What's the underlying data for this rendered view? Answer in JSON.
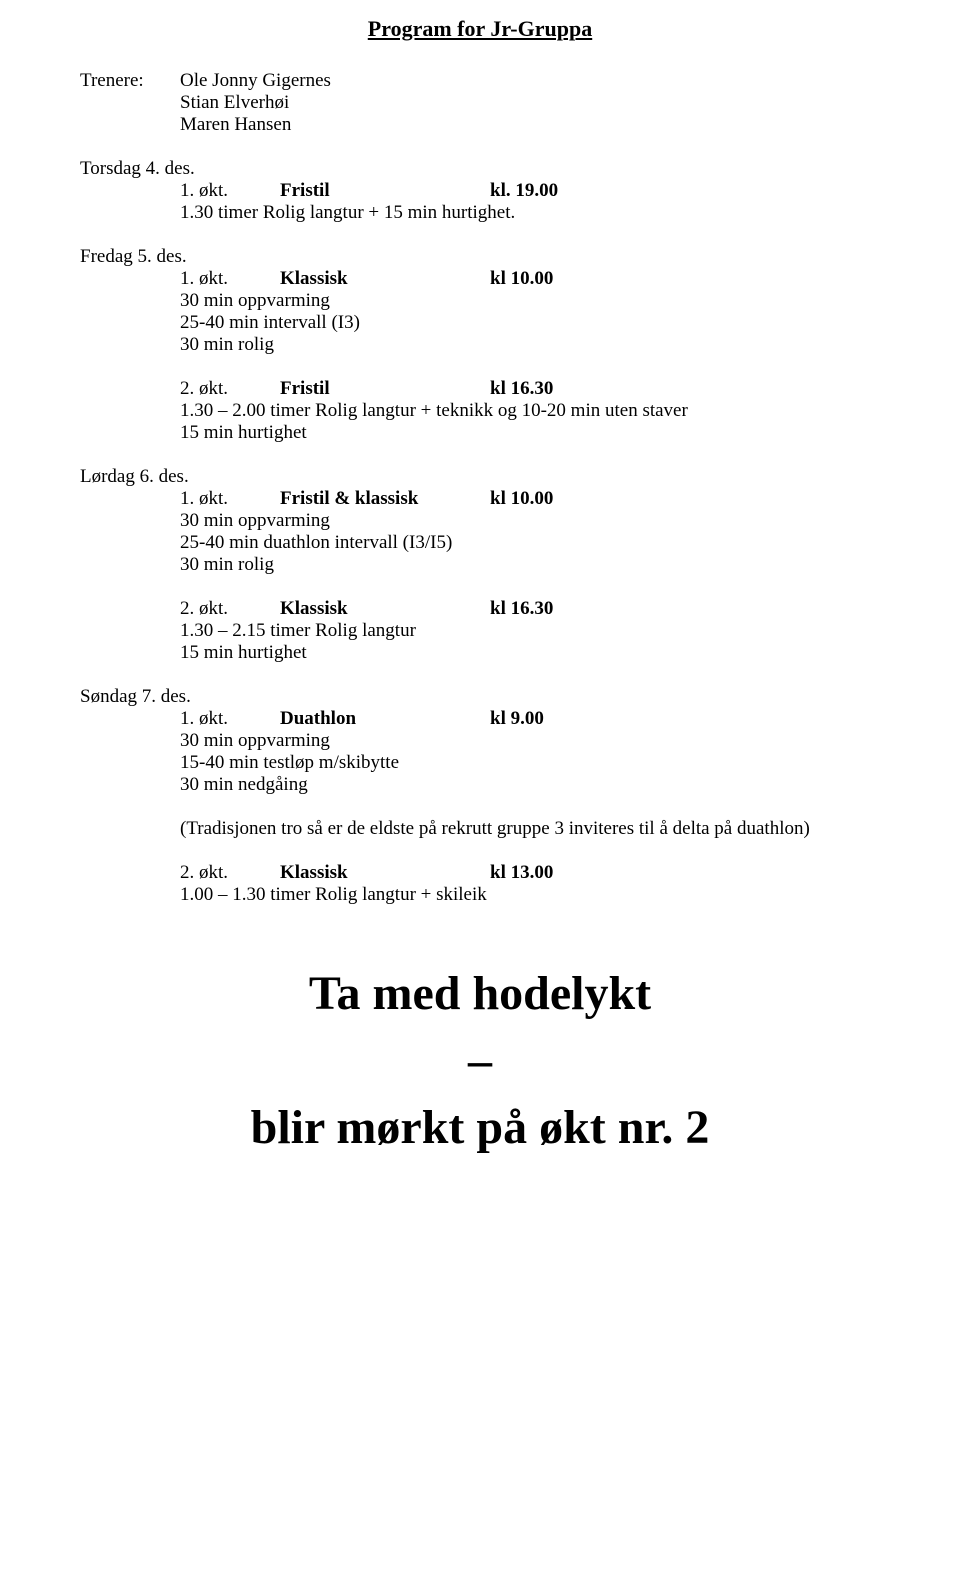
{
  "fontsize_base": 19,
  "fontsize_title": 22,
  "fontsize_big": 48,
  "text_color": "#000000",
  "background_color": "#ffffff",
  "title": "Program for Jr-Gruppa",
  "trainers_label": "Trenere:",
  "trainers": [
    "Ole Jonny Gigernes",
    "Stian Elverhøi",
    "Maren Hansen"
  ],
  "thursday": {
    "day": "Torsdag 4. des.",
    "s1": {
      "n": "1. økt.",
      "style": "Fristil",
      "time": "kl. 19.00"
    },
    "line1": "1.30 timer Rolig langtur + 15 min hurtighet."
  },
  "friday": {
    "day": "Fredag 5. des.",
    "s1": {
      "n": "1. økt.",
      "style": "Klassisk",
      "time": "kl 10.00"
    },
    "l1": "30 min oppvarming",
    "l2": "25-40 min intervall (I3)",
    "l3": "30 min rolig",
    "s2": {
      "n": "2. økt.",
      "style": "Fristil",
      "time": "kl 16.30"
    },
    "l4": "1.30 – 2.00 timer Rolig langtur + teknikk og 10-20 min uten staver",
    "l5": "15 min hurtighet"
  },
  "saturday": {
    "day": "Lørdag 6. des.",
    "s1": {
      "n": "1. økt.",
      "style": "Fristil & klassisk",
      "time": "kl 10.00"
    },
    "l1": "30 min oppvarming",
    "l2": "25-40 min duathlon intervall (I3/I5)",
    "l3": "30 min rolig",
    "s2": {
      "n": "2. økt.",
      "style": "Klassisk",
      "time": "kl 16.30"
    },
    "l4": "1.30 – 2.15 timer Rolig langtur",
    "l5": "15 min hurtighet"
  },
  "sunday": {
    "day": "Søndag 7. des.",
    "s1": {
      "n": "1. økt.",
      "style": "Duathlon",
      "time": "kl 9.00"
    },
    "l1": "30 min oppvarming",
    "l2": "15-40 min testløp m/skibytte",
    "l3": "30 min nedgåing",
    "note": "(Tradisjonen tro så er de eldste på rekrutt gruppe 3 inviteres til å delta på duathlon)",
    "s2": {
      "n": "2. økt.",
      "style": "Klassisk",
      "time": "kl 13.00"
    },
    "l4": "1.00 – 1.30 timer Rolig langtur + skileik"
  },
  "big_line1": "Ta med hodelykt",
  "big_dash": "–",
  "big_line2": "blir mørkt på økt nr. 2"
}
